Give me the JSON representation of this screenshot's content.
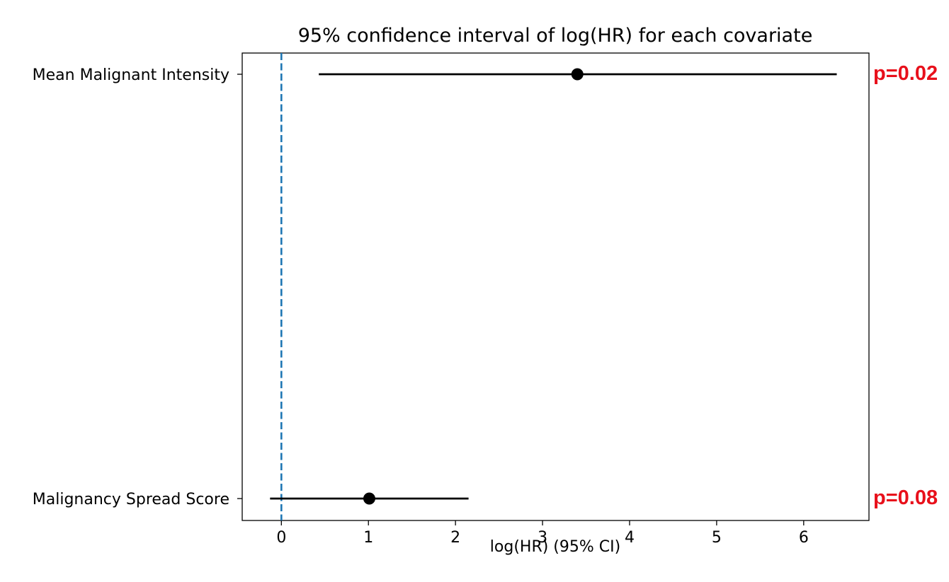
{
  "chart_data": {
    "type": "forest",
    "title": "95% confidence interval of log(HR) for each covariate",
    "xlabel": "log(HR) (95% CI)",
    "ylabel": "",
    "xlim": [
      -0.45,
      6.75
    ],
    "xticks": [
      0,
      1,
      2,
      3,
      4,
      5,
      6
    ],
    "reference_line": {
      "x": 0,
      "style": "dashed",
      "color": "#1f77b4"
    },
    "covariates": [
      {
        "label": "Mean Malignant Intensity",
        "estimate": 3.4,
        "ci_low": 0.43,
        "ci_high": 6.38,
        "p_value": "p=0.02"
      },
      {
        "label": "Malignancy Spread Score",
        "estimate": 1.01,
        "ci_low": -0.13,
        "ci_high": 2.15,
        "p_value": "p=0.08"
      }
    ],
    "colors": {
      "marker": "#000000",
      "pvalue": "#e8101b"
    }
  }
}
